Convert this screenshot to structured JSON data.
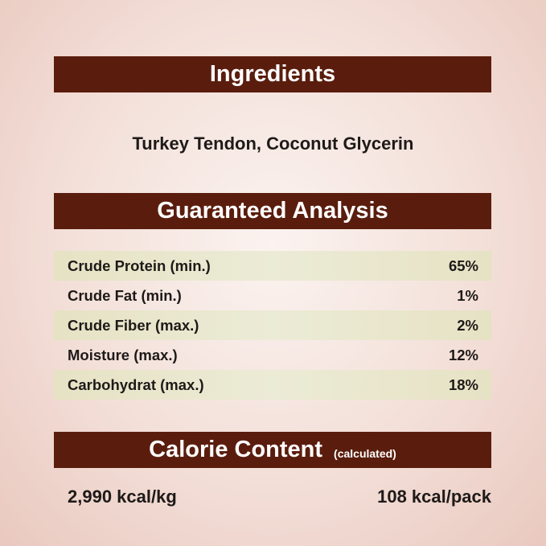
{
  "ingredients": {
    "title": "Ingredients",
    "text": "Turkey Tendon, Coconut Glycerin"
  },
  "analysis": {
    "title": "Guaranteed Analysis",
    "rows": [
      {
        "label": "Crude Protein (min.)",
        "value": "65%"
      },
      {
        "label": "Crude Fat (min.)",
        "value": "1%"
      },
      {
        "label": "Crude Fiber (max.)",
        "value": "2%"
      },
      {
        "label": "Moisture (max.)",
        "value": "12%"
      },
      {
        "label": "Carbohydrat (max.)",
        "value": "18%"
      }
    ]
  },
  "calorie": {
    "title": "Calorie Content",
    "note": "(calculated)",
    "per_kg": "2,990 kcal/kg",
    "per_pack": "108 kcal/pack"
  },
  "colors": {
    "banner": "#5a1d0d",
    "stripe": "#e6e2c4"
  }
}
